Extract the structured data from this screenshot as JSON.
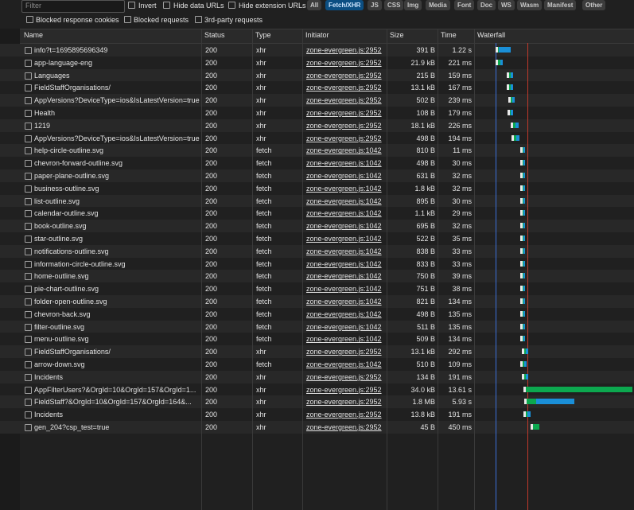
{
  "toolbar": {
    "filter_placeholder": "Filter",
    "checkboxes": [
      "Invert",
      "Hide data URLs",
      "Hide extension URLs"
    ],
    "buttons": [
      "All",
      "Fetch/XHR",
      "JS",
      "CSS",
      "Img",
      "Media",
      "Font",
      "Doc",
      "WS",
      "Wasm",
      "Manifest",
      "Other"
    ],
    "checkboxes_2": [
      "Blocked response cookies",
      "Blocked requests",
      "3rd-party requests"
    ]
  },
  "table": {
    "columns": [
      "Name",
      "Status",
      "Type",
      "Initiator",
      "Size",
      "Time",
      "Waterfall"
    ],
    "rows": [
      [
        "info?t=1695895696349",
        "200",
        "xhr",
        "zone-evergreen.js:2952",
        "391 B",
        "1.22 s"
      ],
      [
        "app-language-eng",
        "200",
        "xhr",
        "zone-evergreen.js:2952",
        "21.9 kB",
        "221 ms"
      ],
      [
        "Languages",
        "200",
        "xhr",
        "zone-evergreen.js:2952",
        "215 B",
        "159 ms"
      ],
      [
        "FieldStaffOrganisations/",
        "200",
        "xhr",
        "zone-evergreen.js:2952",
        "13.1 kB",
        "167 ms"
      ],
      [
        "AppVersions?DeviceType=ios&IsLatestVersion=true",
        "200",
        "xhr",
        "zone-evergreen.js:2952",
        "502 B",
        "239 ms"
      ],
      [
        "Health",
        "200",
        "xhr",
        "zone-evergreen.js:2952",
        "108 B",
        "179 ms"
      ],
      [
        "1219",
        "200",
        "xhr",
        "zone-evergreen.js:2952",
        "18.1 kB",
        "226 ms"
      ],
      [
        "AppVersions?DeviceType=ios&IsLatestVersion=true",
        "200",
        "xhr",
        "zone-evergreen.js:2952",
        "498 B",
        "194 ms"
      ],
      [
        "help-circle-outline.svg",
        "200",
        "fetch",
        "zone-evergreen.js:1042",
        "810 B",
        "11 ms"
      ],
      [
        "chevron-forward-outline.svg",
        "200",
        "fetch",
        "zone-evergreen.js:1042",
        "498 B",
        "30 ms"
      ],
      [
        "paper-plane-outline.svg",
        "200",
        "fetch",
        "zone-evergreen.js:1042",
        "631 B",
        "32 ms"
      ],
      [
        "business-outline.svg",
        "200",
        "fetch",
        "zone-evergreen.js:1042",
        "1.8 kB",
        "32 ms"
      ],
      [
        "list-outline.svg",
        "200",
        "fetch",
        "zone-evergreen.js:1042",
        "895 B",
        "30 ms"
      ],
      [
        "calendar-outline.svg",
        "200",
        "fetch",
        "zone-evergreen.js:1042",
        "1.1 kB",
        "29 ms"
      ],
      [
        "book-outline.svg",
        "200",
        "fetch",
        "zone-evergreen.js:1042",
        "695 B",
        "32 ms"
      ],
      [
        "star-outline.svg",
        "200",
        "fetch",
        "zone-evergreen.js:1042",
        "522 B",
        "35 ms"
      ],
      [
        "notifications-outline.svg",
        "200",
        "fetch",
        "zone-evergreen.js:1042",
        "838 B",
        "33 ms"
      ],
      [
        "information-circle-outline.svg",
        "200",
        "fetch",
        "zone-evergreen.js:1042",
        "833 B",
        "33 ms"
      ],
      [
        "home-outline.svg",
        "200",
        "fetch",
        "zone-evergreen.js:1042",
        "750 B",
        "39 ms"
      ],
      [
        "pie-chart-outline.svg",
        "200",
        "fetch",
        "zone-evergreen.js:1042",
        "751 B",
        "38 ms"
      ],
      [
        "folder-open-outline.svg",
        "200",
        "fetch",
        "zone-evergreen.js:1042",
        "821 B",
        "134 ms"
      ],
      [
        "chevron-back.svg",
        "200",
        "fetch",
        "zone-evergreen.js:1042",
        "498 B",
        "135 ms"
      ],
      [
        "filter-outline.svg",
        "200",
        "fetch",
        "zone-evergreen.js:1042",
        "511 B",
        "135 ms"
      ],
      [
        "menu-outline.svg",
        "200",
        "fetch",
        "zone-evergreen.js:1042",
        "509 B",
        "134 ms"
      ],
      [
        "FieldStaffOrganisations/",
        "200",
        "xhr",
        "zone-evergreen.js:2952",
        "13.1 kB",
        "292 ms"
      ],
      [
        "arrow-down.svg",
        "200",
        "fetch",
        "zone-evergreen.js:1042",
        "510 B",
        "109 ms"
      ],
      [
        "Incidents",
        "200",
        "xhr",
        "zone-evergreen.js:2952",
        "134 B",
        "191 ms"
      ],
      [
        "AppFilterUsers?&OrgId=10&OrgId=157&OrgId=1...",
        "200",
        "xhr",
        "zone-evergreen.js:2952",
        "34.0 kB",
        "13.61 s"
      ],
      [
        "FieldStaff?&OrgId=10&OrgId=157&OrgId=164&...",
        "200",
        "xhr",
        "zone-evergreen.js:2952",
        "1.8 MB",
        "5.93 s"
      ],
      [
        "Incidents",
        "200",
        "xhr",
        "zone-evergreen.js:2952",
        "13.8 kB",
        "191 ms"
      ],
      [
        "gen_204?csp_test=true",
        "200",
        "xhr",
        "zone-evergreen.js:2952",
        "45 B",
        "450 ms"
      ]
    ]
  }
}
